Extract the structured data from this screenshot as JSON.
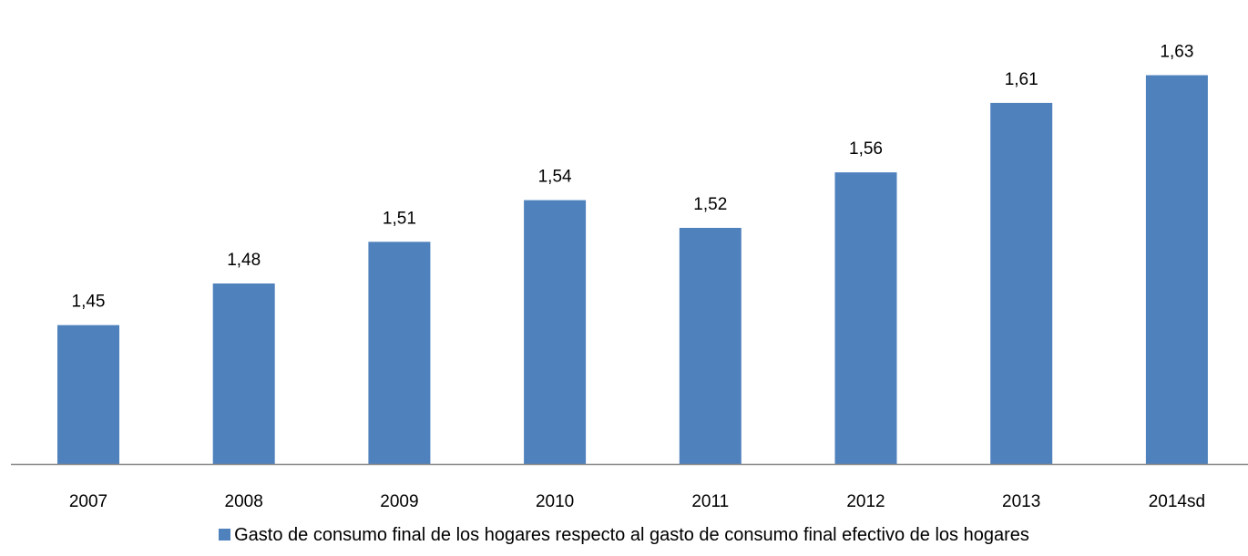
{
  "chart_data": {
    "type": "bar",
    "categories": [
      "2007",
      "2008",
      "2009",
      "2010",
      "2011",
      "2012",
      "2013",
      "2014sd"
    ],
    "series": [
      {
        "name": "Gasto de consumo final de los hogares respecto al gasto de consumo final efectivo de los hogares",
        "values": [
          1.45,
          1.48,
          1.51,
          1.54,
          1.52,
          1.56,
          1.61,
          1.63
        ],
        "labels": [
          "1,45",
          "1,48",
          "1,51",
          "1,54",
          "1,52",
          "1,56",
          "1,61",
          "1,63"
        ],
        "color": "#4f81bd"
      }
    ],
    "ylim": [
      1.35,
      1.65
    ],
    "grid": false,
    "legend_position": "bottom",
    "axis_color": "#868686"
  }
}
